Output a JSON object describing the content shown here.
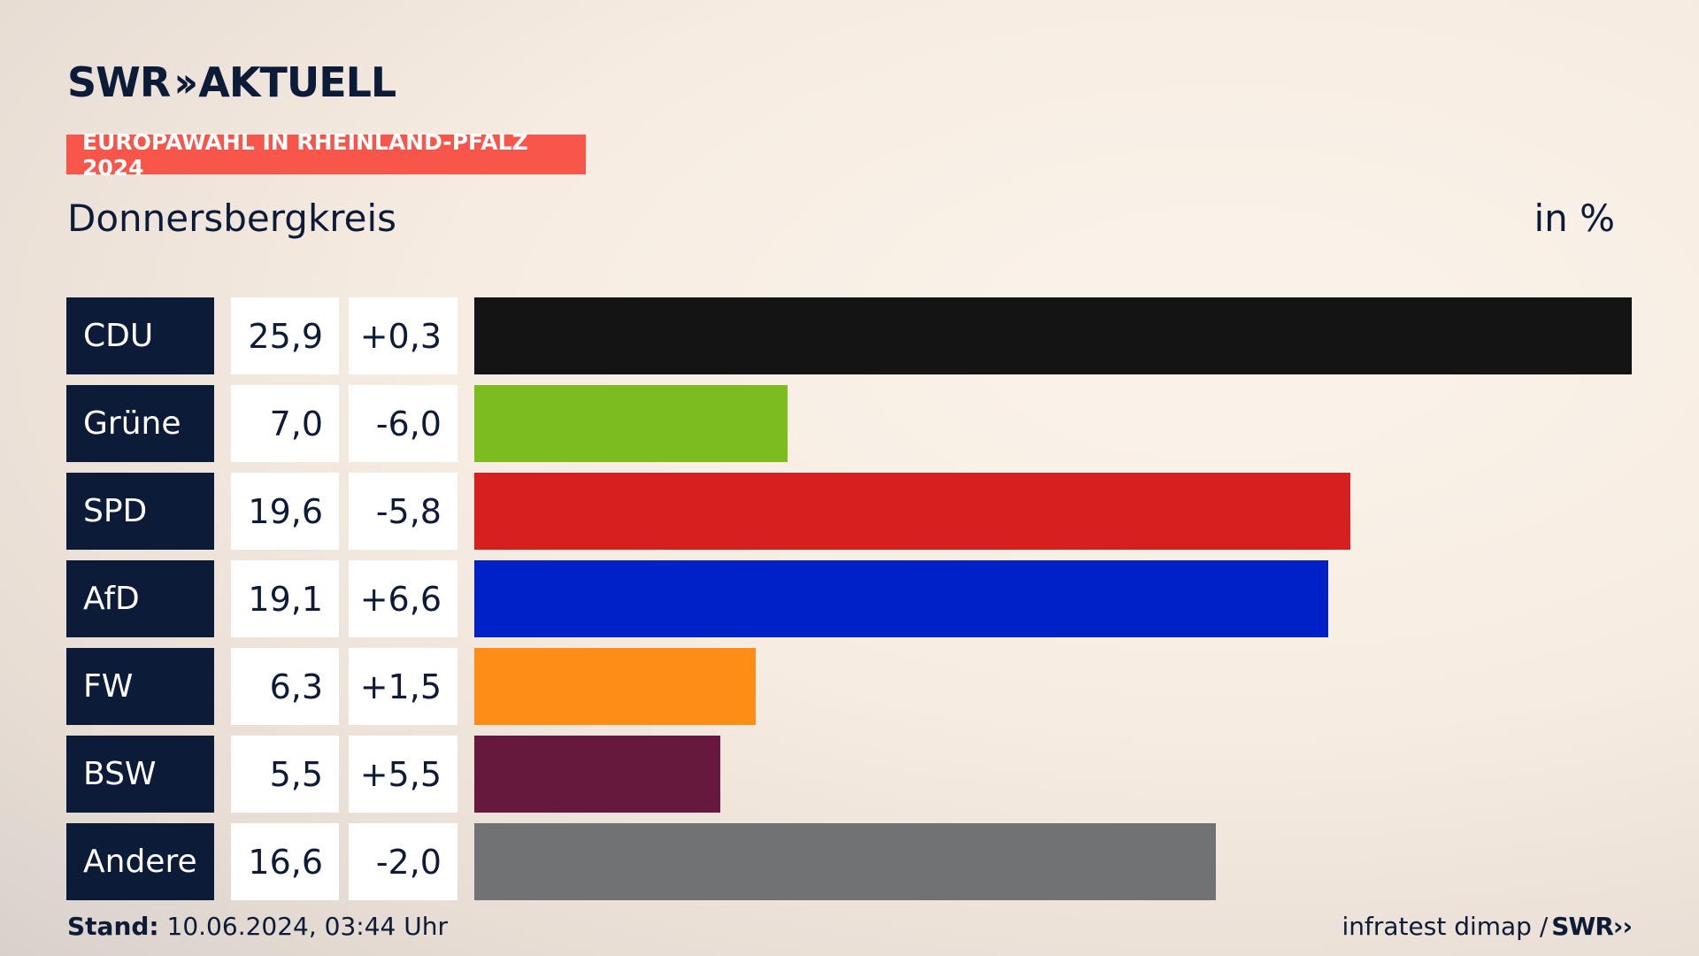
{
  "logo": {
    "swr": "SWR",
    "chevrons": "››",
    "aktuell": "AKTUELL"
  },
  "badge": "EUROPAWAHL IN RHEINLAND-PFALZ 2024",
  "region": "Donnersbergkreis",
  "unit": "in %",
  "footer": {
    "stand_label": "Stand:",
    "stand_value": "10.06.2024, 03:44 Uhr",
    "source": "infratest dimap /",
    "source_logo": "SWR››"
  },
  "chart_data": {
    "type": "bar",
    "orientation": "horizontal",
    "categories": [
      "CDU",
      "Grüne",
      "SPD",
      "AfD",
      "FW",
      "BSW",
      "Andere"
    ],
    "values": [
      25.9,
      7.0,
      19.6,
      19.1,
      6.3,
      5.5,
      16.6
    ],
    "value_labels": [
      "25,9",
      "7,0",
      "19,6",
      "19,1",
      "6,3",
      "5,5",
      "16,6"
    ],
    "changes": [
      0.3,
      -6.0,
      -5.8,
      6.6,
      1.5,
      5.5,
      -2.0
    ],
    "change_labels": [
      "+0,3",
      "-6,0",
      "-5,8",
      "+6,6",
      "+1,5",
      "+5,5",
      "-2,0"
    ],
    "colors": [
      "#141414",
      "#7cbc1e",
      "#d81f20",
      "#0021c8",
      "#fd8d17",
      "#66183d",
      "#717274"
    ],
    "xlim": [
      0,
      25.9
    ],
    "grid": false
  }
}
